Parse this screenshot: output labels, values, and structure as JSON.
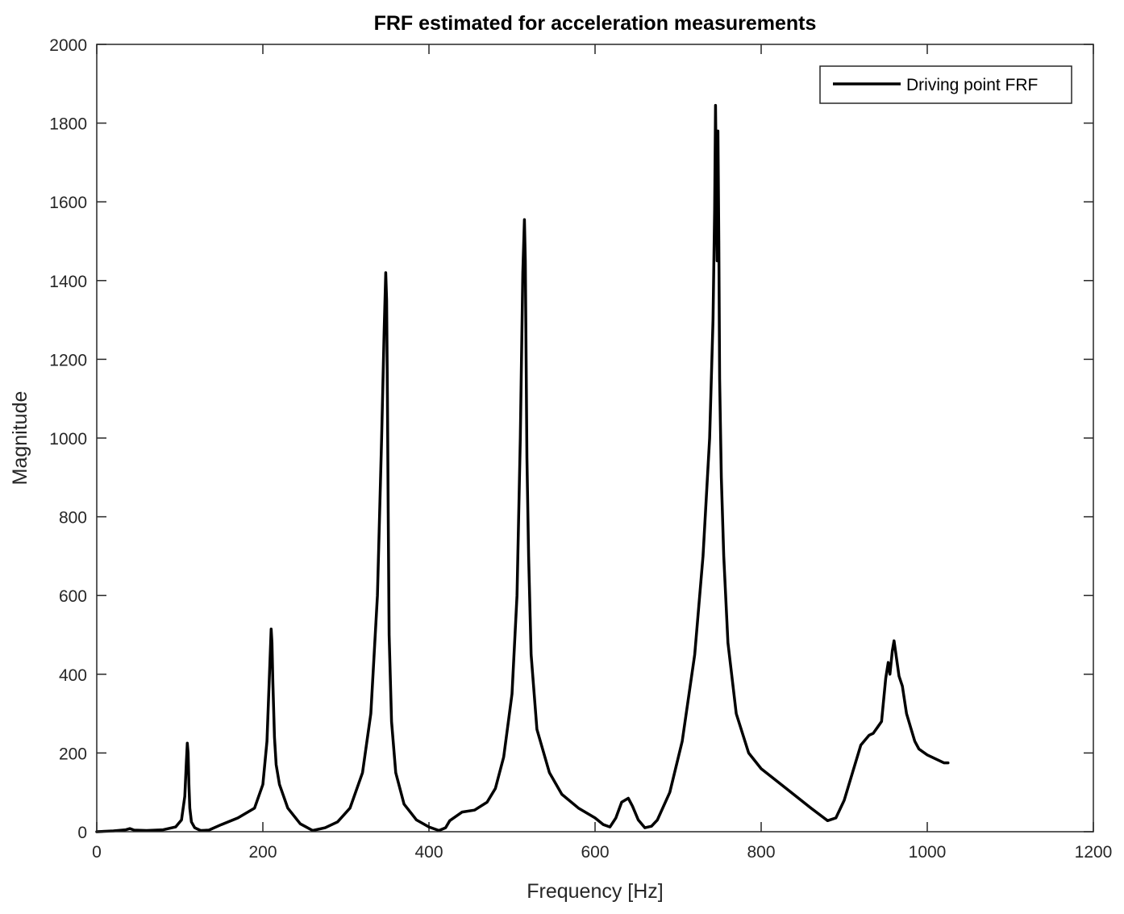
{
  "colors": {
    "series": "#000000",
    "axes": "#262626",
    "background": "#ffffff"
  },
  "chart_data": {
    "type": "line",
    "title": "FRF estimated for acceleration measurements",
    "xlabel": "Frequency [Hz]",
    "ylabel": "Magnitude",
    "xlim": [
      0,
      1200
    ],
    "ylim": [
      0,
      2000
    ],
    "xticks": [
      0,
      200,
      400,
      600,
      800,
      1000,
      1200
    ],
    "yticks": [
      0,
      200,
      400,
      600,
      800,
      1000,
      1200,
      1400,
      1600,
      1800,
      2000
    ],
    "grid": false,
    "legend_position": "top-right",
    "series": [
      {
        "name": "Driving point FRF",
        "x": [
          0,
          20,
          35,
          40,
          45,
          60,
          80,
          95,
          102,
          106,
          108,
          109,
          110,
          111,
          112,
          114,
          118,
          125,
          135,
          150,
          170,
          190,
          200,
          205,
          208,
          210,
          211,
          212,
          214,
          216,
          220,
          230,
          245,
          260,
          275,
          290,
          305,
          320,
          330,
          338,
          343,
          346,
          348,
          349,
          350,
          351,
          352,
          355,
          360,
          370,
          385,
          400,
          412,
          420,
          425,
          440,
          455,
          470,
          480,
          490,
          500,
          506,
          510,
          513,
          515,
          516,
          517,
          518,
          520,
          523,
          530,
          545,
          560,
          580,
          600,
          610,
          618,
          625,
          632,
          640,
          645,
          652,
          660,
          668,
          675,
          690,
          705,
          720,
          730,
          738,
          742,
          744,
          745,
          746,
          747,
          748,
          749,
          750,
          752,
          755,
          760,
          770,
          785,
          800,
          830,
          860,
          880,
          890,
          900,
          910,
          920,
          930,
          935,
          940,
          945,
          950,
          953,
          955,
          958,
          960,
          963,
          966,
          970,
          975,
          980,
          985,
          990,
          1000,
          1010,
          1020,
          1025
        ],
        "y": [
          0,
          2,
          5,
          8,
          4,
          3,
          5,
          12,
          30,
          90,
          180,
          225,
          200,
          120,
          60,
          25,
          10,
          3,
          4,
          18,
          35,
          60,
          120,
          230,
          400,
          515,
          480,
          380,
          240,
          170,
          120,
          60,
          20,
          3,
          10,
          25,
          60,
          150,
          300,
          600,
          1000,
          1270,
          1420,
          1350,
          1100,
          800,
          500,
          280,
          150,
          70,
          30,
          12,
          3,
          10,
          28,
          50,
          55,
          75,
          110,
          190,
          350,
          600,
          1000,
          1420,
          1555,
          1450,
          1200,
          950,
          700,
          450,
          260,
          150,
          95,
          60,
          35,
          18,
          12,
          35,
          75,
          85,
          65,
          30,
          10,
          14,
          30,
          100,
          230,
          450,
          700,
          1000,
          1300,
          1580,
          1845,
          1650,
          1450,
          1780,
          1500,
          1150,
          900,
          700,
          480,
          300,
          200,
          160,
          110,
          60,
          28,
          35,
          80,
          150,
          220,
          245,
          250,
          265,
          280,
          390,
          430,
          400,
          460,
          485,
          440,
          395,
          370,
          300,
          265,
          230,
          210,
          195,
          185,
          175,
          175
        ]
      }
    ]
  }
}
